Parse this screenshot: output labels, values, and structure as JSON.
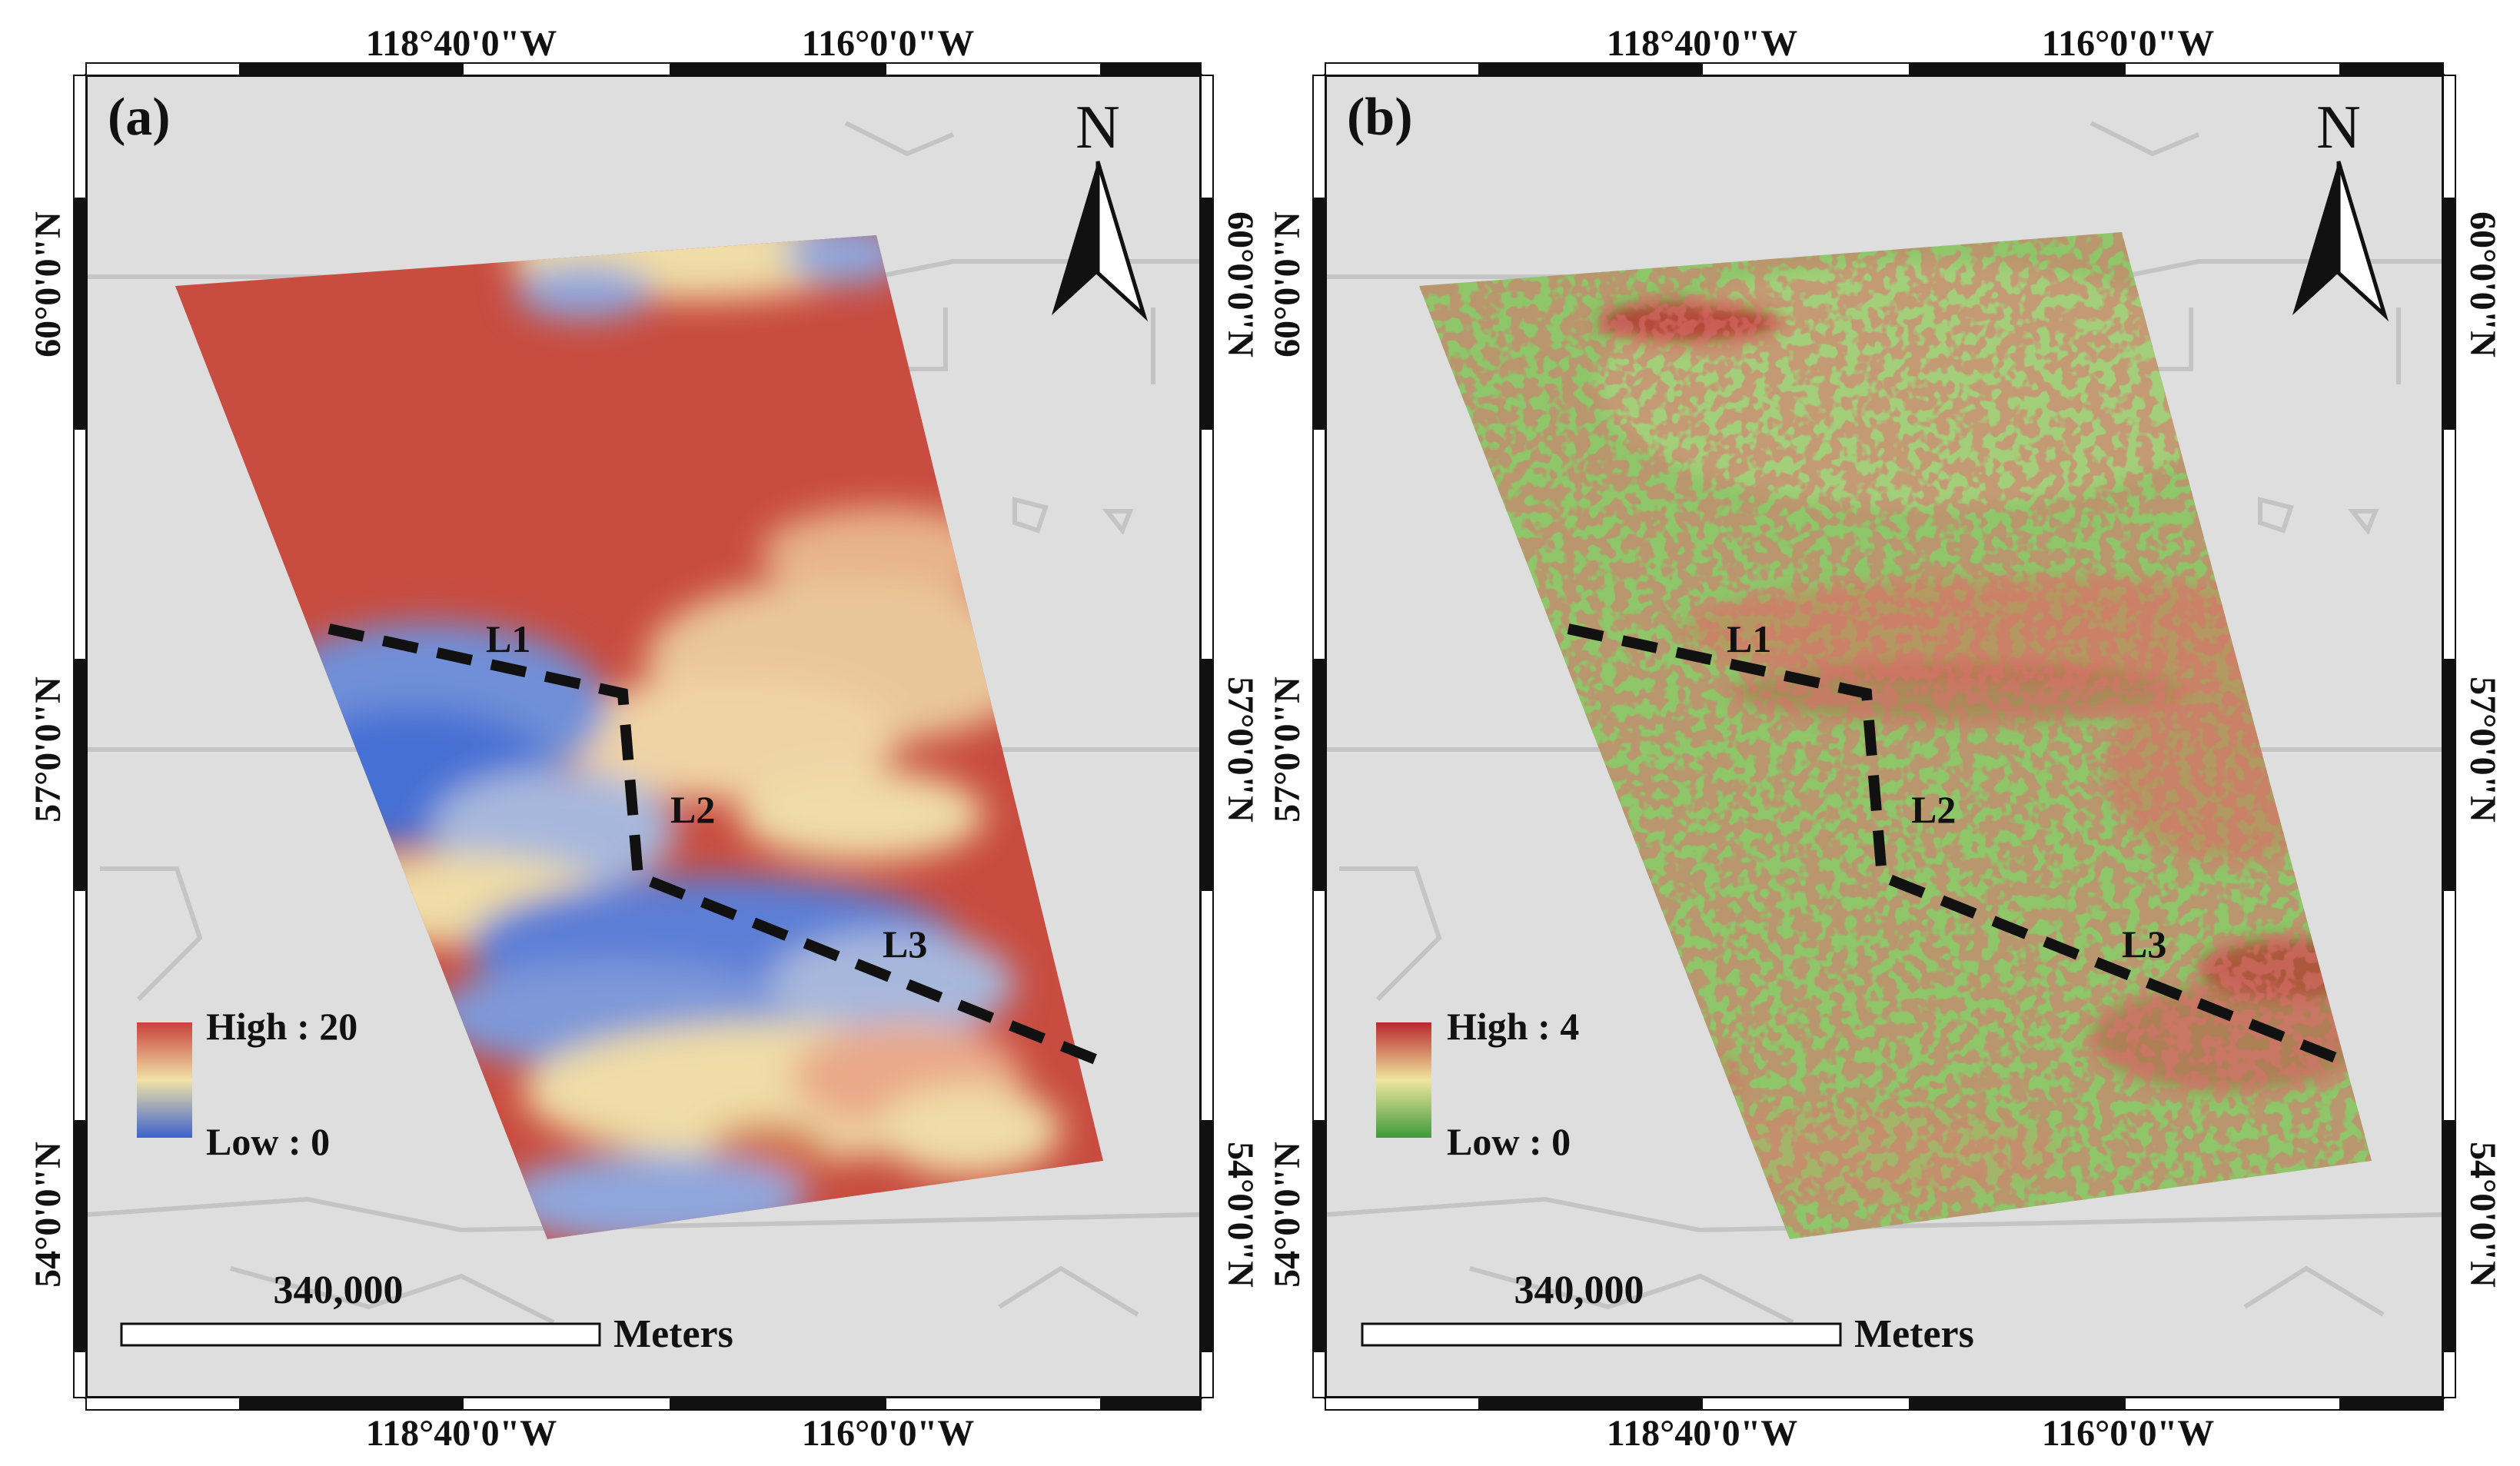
{
  "figure": {
    "panels": [
      {
        "id": "a",
        "label": "(a)",
        "legend": {
          "high": "High : 20",
          "low": "Low : 0",
          "colors": [
            "#c8403a",
            "#f1e2a8",
            "#3d63cc"
          ]
        },
        "raster_colors": {
          "high": "#c84c40",
          "mid": "#efdca6",
          "low": "#4670d4"
        }
      },
      {
        "id": "b",
        "label": "(b)",
        "legend": {
          "high": "High : 4",
          "low": "Low : 0",
          "colors": [
            "#b8282a",
            "#f0e6a0",
            "#3f9a3a"
          ]
        },
        "raster_colors": {
          "high": "#b8282a",
          "mid": "#e8d98a",
          "low": "#8fc66a"
        }
      }
    ],
    "top_ticks": [
      "118°40'0\"W",
      "116°0'0\"W"
    ],
    "bottom_ticks": [
      "118°40'0\"W",
      "116°0'0\"W"
    ],
    "left_ticks": [
      "60°0'0\"N",
      "57°0'0\"N",
      "54°0'0\"N"
    ],
    "right_ticks": [
      "60°0'0\"N",
      "57°0'0\"N",
      "54°0'0\"N"
    ],
    "north_arrow": "N",
    "scale_bar": {
      "value": "340,000",
      "unit": "Meters"
    },
    "lines": [
      "L1",
      "L2",
      "L3"
    ],
    "colors": {
      "map_bg": "#dedede",
      "boundary": "#c4c4c4",
      "frame": "#111111",
      "route": "#111111"
    }
  }
}
